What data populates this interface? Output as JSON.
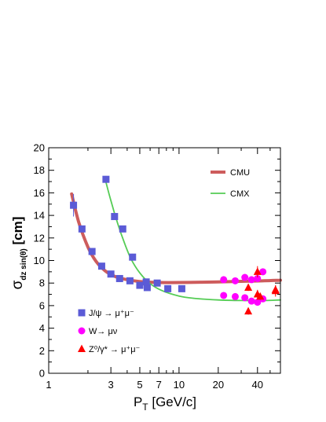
{
  "chart_data": {
    "type": "scatter",
    "x_scale": "log",
    "xlim": [
      1,
      60
    ],
    "ylim": [
      0,
      20
    ],
    "x_ticks": [
      {
        "v": 1,
        "label": "1"
      },
      {
        "v": 3,
        "label": "3"
      },
      {
        "v": 5,
        "label": "5"
      },
      {
        "v": 7,
        "label": "7"
      },
      {
        "v": 10,
        "label": "10"
      },
      {
        "v": 20,
        "label": "20"
      },
      {
        "v": 40,
        "label": "40"
      }
    ],
    "x_minor_ticks": [
      2,
      4,
      6,
      8,
      9,
      30,
      50,
      60
    ],
    "y_ticks": [
      0,
      2,
      4,
      6,
      8,
      10,
      12,
      14,
      16,
      18,
      20
    ],
    "xlabel": {
      "main": "P",
      "sub": "T",
      "rest": " [GeV/c]"
    },
    "ylabel": {
      "main": "σ",
      "sub": "dz sin(θ)",
      "rest": " [cm]"
    },
    "legend_top_right": [
      {
        "name": "CMU",
        "color": "#cd5c5c",
        "style": "thick-line"
      },
      {
        "name": "CMX",
        "color": "#55cc55",
        "style": "thin-line"
      }
    ],
    "legend_bottom_left": [
      {
        "name": "J/ψ → μ⁺μ⁻",
        "marker": "square",
        "color": "#5b5bd6"
      },
      {
        "name": "W→ μν",
        "marker": "circle",
        "color": "#ff00ff"
      },
      {
        "name": "Z⁰/γ* → μ⁺μ⁻",
        "marker": "triangle",
        "color": "#ff0000"
      }
    ],
    "curves": [
      {
        "name": "CMU",
        "color": "#cd5c5c",
        "width": 4,
        "x": [
          1.5,
          1.7,
          2.0,
          2.3,
          2.7,
          3.2,
          3.8,
          4.5,
          5.5,
          7,
          10,
          15,
          20,
          30,
          45,
          60
        ],
        "y": [
          15.9,
          13.4,
          11.2,
          9.95,
          9.1,
          8.6,
          8.35,
          8.2,
          8.1,
          8.05,
          8.05,
          8.08,
          8.1,
          8.15,
          8.2,
          8.25
        ]
      },
      {
        "name": "CMX",
        "color": "#55cc55",
        "width": 1.8,
        "x": [
          2.7,
          3.0,
          3.4,
          3.8,
          4.3,
          5.0,
          6.0,
          7.5,
          10,
          13,
          20,
          30,
          45,
          60
        ],
        "y": [
          17.3,
          15.3,
          13.2,
          11.6,
          10.1,
          8.9,
          7.95,
          7.3,
          6.85,
          6.65,
          6.5,
          6.45,
          6.45,
          6.5
        ]
      }
    ],
    "series": [
      {
        "name": "J/ψ → μ⁺μ⁻",
        "marker": "square",
        "color": "#5b5bd6",
        "x": [
          1.55,
          1.8,
          2.15,
          2.55,
          3.0,
          3.5,
          4.2,
          5.0,
          5.7,
          6.8,
          8.2,
          10.5,
          2.75,
          3.2,
          3.7,
          4.4,
          5.6
        ],
        "y": [
          14.9,
          12.8,
          10.8,
          9.5,
          8.8,
          8.4,
          8.2,
          7.8,
          7.6,
          8.0,
          7.5,
          7.5,
          17.2,
          13.9,
          12.8,
          10.3,
          8.1
        ],
        "yerr": [
          1.0,
          0.3,
          0.3,
          0.2,
          0.2,
          0.2,
          0.2,
          0.2,
          0.2,
          0.2,
          0.2,
          0.2,
          0.3,
          0.3,
          0.3,
          0.3,
          0.3
        ]
      },
      {
        "name": "W→ μν",
        "marker": "circle",
        "color": "#ff00ff",
        "x": [
          22,
          27,
          32,
          36,
          40,
          44,
          22,
          27,
          32,
          36,
          40,
          44
        ],
        "y": [
          8.3,
          8.2,
          8.5,
          8.3,
          8.4,
          9.0,
          6.9,
          6.8,
          6.7,
          6.4,
          6.3,
          6.6
        ],
        "yerr": [
          0.1,
          0.1,
          0.1,
          0.1,
          0.15,
          0.3,
          0.1,
          0.1,
          0.1,
          0.1,
          0.1,
          0.25
        ]
      },
      {
        "name": "Z⁰/γ* → μ⁺μ⁻",
        "marker": "triangle",
        "color": "#ff0000",
        "x": [
          34,
          40,
          55,
          34,
          40,
          42,
          55
        ],
        "y": [
          7.6,
          9.0,
          7.3,
          5.5,
          7.0,
          6.8,
          7.4
        ],
        "yerr": [
          0.3,
          0.5,
          0.5,
          0.3,
          0.4,
          0.3,
          0.4
        ]
      }
    ]
  }
}
